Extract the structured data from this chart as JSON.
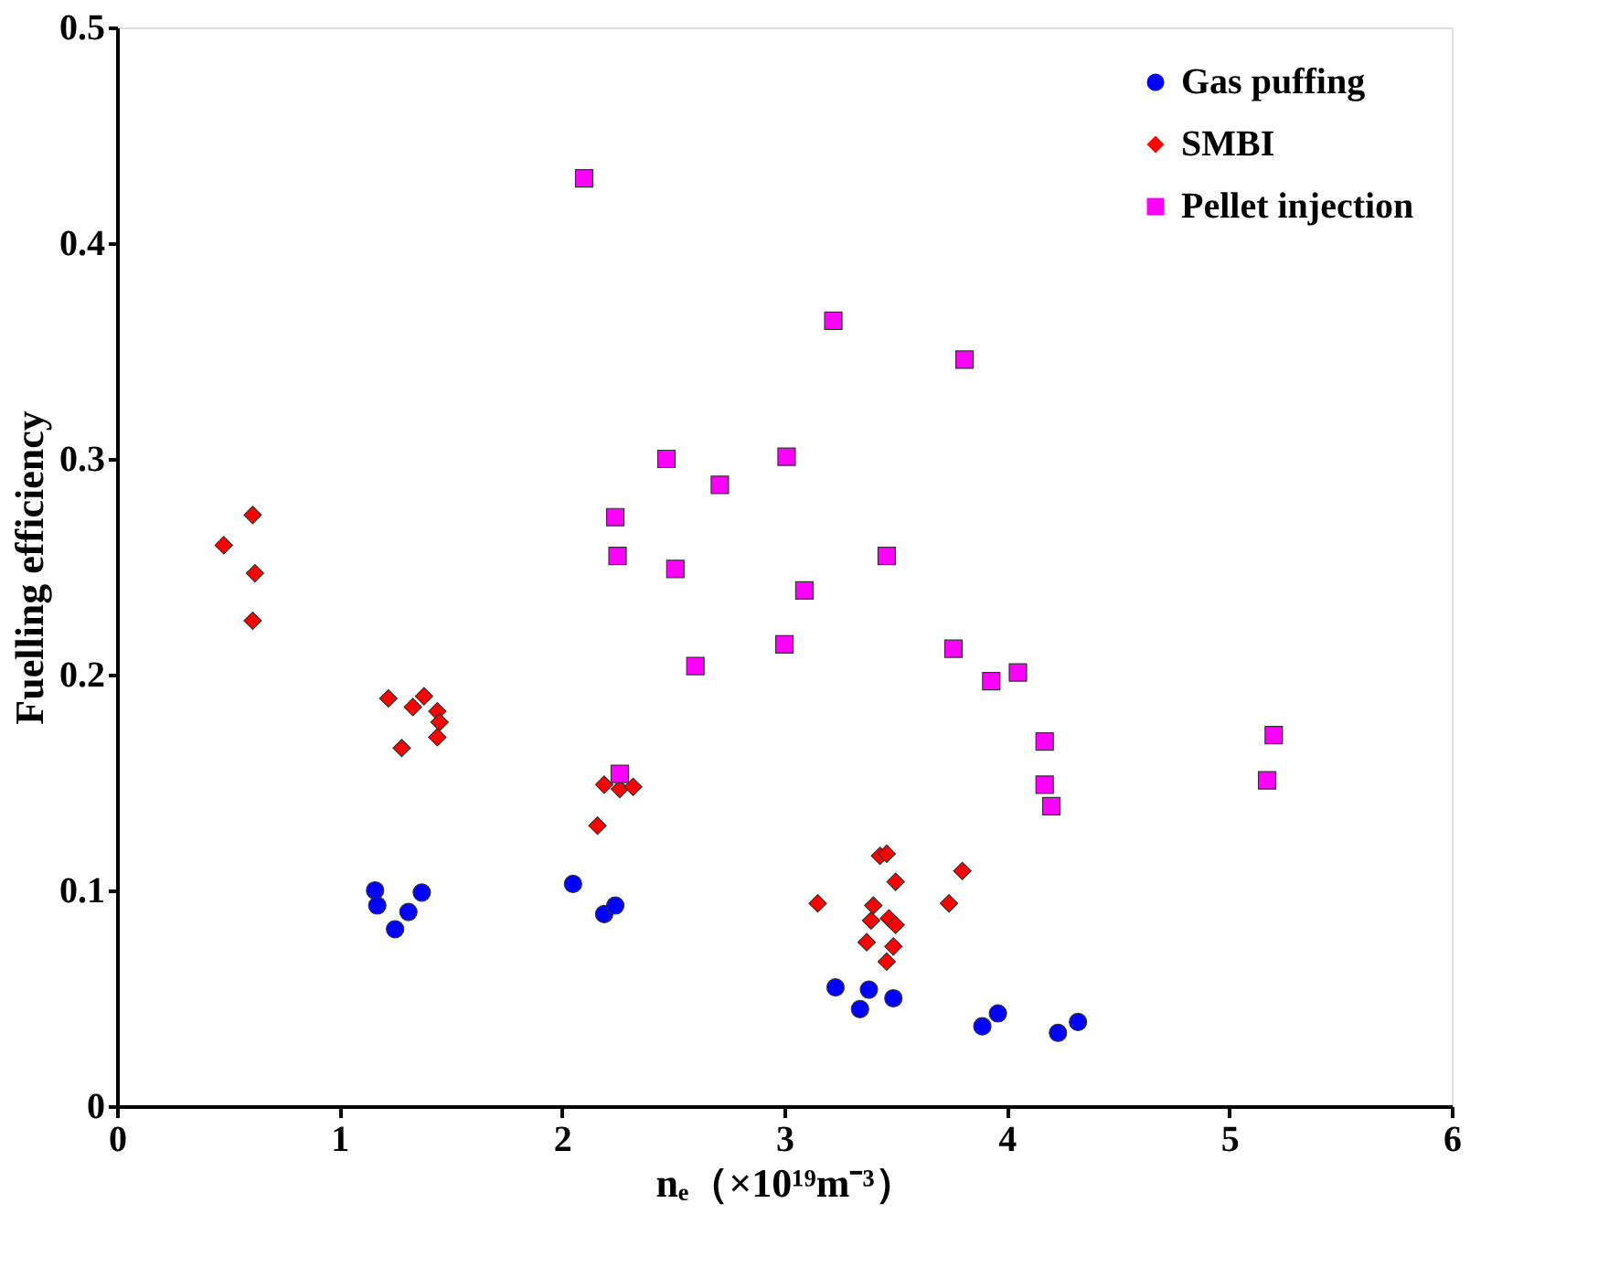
{
  "chart_data": {
    "type": "scatter",
    "xlabel": "nₑ（×10¹⁹m⁻³）",
    "ylabel": "Fuelling efficiency",
    "xlim": [
      0,
      6
    ],
    "xticks": [
      0,
      1,
      2,
      3,
      4,
      5,
      6
    ],
    "ylim": [
      0,
      0.5
    ],
    "yticks": [
      0,
      0.1,
      0.2,
      0.3,
      0.4,
      0.5
    ],
    "grid": false,
    "legend": "top right",
    "series": [
      {
        "name": "Gas puffing",
        "color": "#0000ff",
        "marker": "circle",
        "x": [
          1.16,
          1.17,
          1.25,
          1.31,
          1.37,
          2.05,
          2.19,
          2.24,
          3.23,
          3.34,
          3.38,
          3.49,
          3.89,
          3.96,
          4.23,
          4.32
        ],
        "values": [
          0.1,
          0.093,
          0.082,
          0.09,
          0.099,
          0.103,
          0.089,
          0.093,
          0.055,
          0.045,
          0.054,
          0.05,
          0.037,
          0.043,
          0.034,
          0.039
        ]
      },
      {
        "name": "SMBI",
        "color": "#ff0000",
        "marker": "diamond",
        "x": [
          0.48,
          0.61,
          0.62,
          0.61,
          1.22,
          1.28,
          1.33,
          1.38,
          1.44,
          1.45,
          1.44,
          2.16,
          2.19,
          2.26,
          2.32,
          3.15,
          3.37,
          3.4,
          3.43,
          3.46,
          3.5,
          3.39,
          3.47,
          3.5,
          3.49,
          3.46,
          3.74,
          3.8
        ],
        "values": [
          0.26,
          0.274,
          0.247,
          0.225,
          0.189,
          0.166,
          0.185,
          0.19,
          0.183,
          0.178,
          0.171,
          0.13,
          0.149,
          0.147,
          0.148,
          0.094,
          0.076,
          0.093,
          0.116,
          0.117,
          0.104,
          0.086,
          0.087,
          0.084,
          0.074,
          0.067,
          0.094,
          0.109
        ]
      },
      {
        "name": "Pellet injection",
        "color": "#ff00ff",
        "marker": "square",
        "x": [
          2.1,
          3.22,
          3.81,
          2.47,
          3.01,
          2.71,
          2.24,
          2.25,
          2.51,
          3.46,
          3.09,
          3.0,
          2.6,
          3.76,
          4.05,
          3.93,
          4.17,
          4.17,
          4.2,
          2.26,
          5.2,
          5.17
        ],
        "values": [
          0.43,
          0.364,
          0.346,
          0.3,
          0.301,
          0.288,
          0.273,
          0.255,
          0.249,
          0.255,
          0.239,
          0.214,
          0.204,
          0.212,
          0.201,
          0.197,
          0.169,
          0.149,
          0.139,
          0.154,
          0.172,
          0.151
        ]
      }
    ]
  }
}
